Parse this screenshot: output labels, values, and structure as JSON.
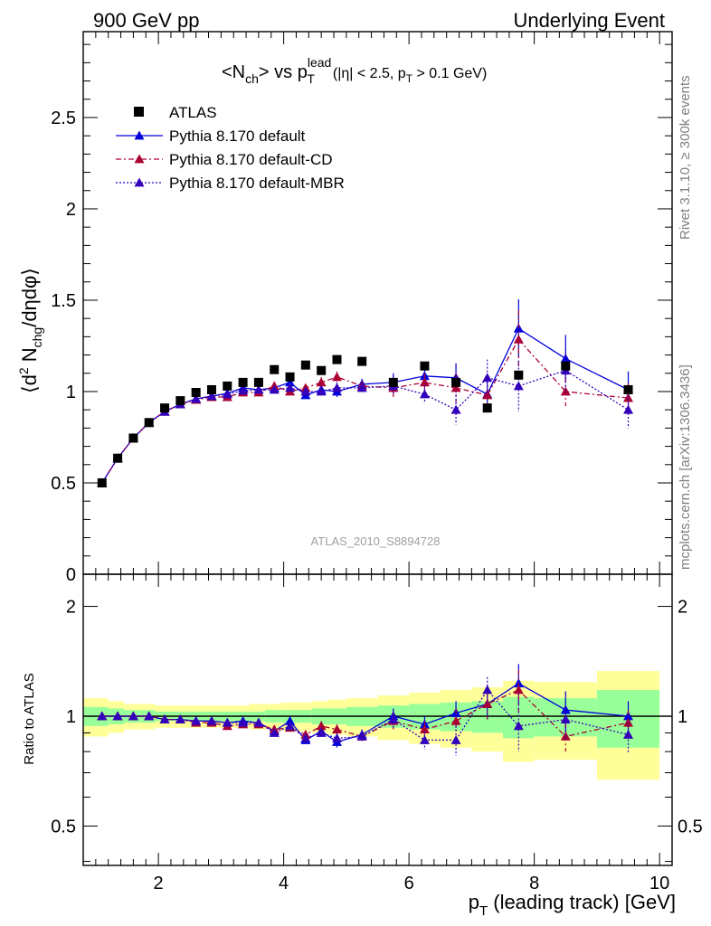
{
  "header": {
    "left": "900 GeV pp",
    "right": "Underlying Event"
  },
  "side_labels": {
    "rivet": "Rivet 3.1.10, ≥ 300k events",
    "mcplots": "mcplots.cern.ch [arXiv:1306.3436]"
  },
  "watermark": "ATLAS_2010_S8894728",
  "colors": {
    "atlas": "#000000",
    "default": "#0000dd",
    "cd": "#aa0033",
    "mbr": "#3300bb",
    "band_inner": "#99ff99",
    "band_outer": "#ffff99"
  },
  "chart_data": [
    {
      "type": "scatter",
      "panel": "main",
      "title": "<N_ch> vs p_T^lead (|η| < 2.5, p_T > 0.1 GeV)",
      "ylabel": "⟨d² N_chg/dηdφ⟩",
      "xlim": [
        0.8,
        10.2
      ],
      "ylim": [
        0,
        2.97
      ],
      "yticks": [
        0,
        0.5,
        1,
        1.5,
        2,
        2.5
      ],
      "ytick_labels": [
        "0",
        "0.5",
        "1",
        "1.5",
        "2",
        "2.5"
      ],
      "x": [
        1.1,
        1.35,
        1.6,
        1.85,
        2.1,
        2.35,
        2.6,
        2.85,
        3.1,
        3.35,
        3.6,
        3.85,
        4.1,
        4.35,
        4.6,
        4.85,
        5.25,
        5.75,
        6.25,
        6.75,
        7.25,
        7.75,
        8.5,
        9.5
      ],
      "legend": [
        "ATLAS",
        "Pythia 8.170 default",
        "Pythia 8.170 default-CD",
        "Pythia 8.170 default-MBR"
      ],
      "legend_position": "top-left",
      "series": [
        {
          "name": "ATLAS",
          "style": "square",
          "values": [
            0.5,
            0.635,
            0.745,
            0.83,
            0.91,
            0.95,
            0.995,
            1.01,
            1.03,
            1.05,
            1.05,
            1.12,
            1.08,
            1.145,
            1.115,
            1.175,
            1.165,
            1.05,
            1.14,
            1.05,
            0.91,
            1.09,
            1.14,
            1.01
          ]
        },
        {
          "name": "Pythia 8.170 default",
          "style": "solid",
          "values": [
            0.5,
            0.635,
            0.745,
            0.83,
            0.89,
            0.93,
            0.96,
            0.975,
            0.99,
            1.02,
            1.01,
            1.02,
            1.05,
            0.98,
            1.01,
            1.0,
            1.04,
            1.05,
            1.085,
            1.075,
            0.985,
            1.345,
            1.18,
            1.01
          ],
          "errors": [
            0,
            0,
            0,
            0,
            0,
            0,
            0,
            0,
            0.01,
            0.01,
            0.01,
            0.02,
            0.02,
            0.02,
            0.03,
            0.03,
            0.03,
            0.05,
            0.05,
            0.08,
            0.1,
            0.16,
            0.13,
            0.1
          ]
        },
        {
          "name": "Pythia 8.170 default-CD",
          "style": "dashdot",
          "values": [
            0.5,
            0.635,
            0.745,
            0.83,
            0.89,
            0.93,
            0.955,
            0.97,
            0.97,
            0.995,
            0.995,
            1.03,
            1.0,
            1.02,
            1.05,
            1.08,
            1.03,
            1.02,
            1.05,
            1.02,
            0.98,
            1.285,
            1.0,
            0.965
          ],
          "errors": [
            0,
            0,
            0,
            0,
            0,
            0,
            0,
            0,
            0.01,
            0.01,
            0.01,
            0.02,
            0.02,
            0.02,
            0.03,
            0.03,
            0.03,
            0.05,
            0.05,
            0.08,
            0.1,
            0.16,
            0.08,
            0.08
          ]
        },
        {
          "name": "Pythia 8.170 default-MBR",
          "style": "dotted",
          "values": [
            0.5,
            0.635,
            0.745,
            0.83,
            0.89,
            0.93,
            0.96,
            0.975,
            0.985,
            1.005,
            1.01,
            1.01,
            1.02,
            1.0,
            1.0,
            1.02,
            1.02,
            1.03,
            0.985,
            0.9,
            1.075,
            1.03,
            1.115,
            0.9
          ],
          "errors": [
            0,
            0,
            0,
            0,
            0,
            0,
            0,
            0,
            0.01,
            0.01,
            0.01,
            0.02,
            0.02,
            0.02,
            0.03,
            0.03,
            0.03,
            0.05,
            0.05,
            0.08,
            0.1,
            0.14,
            0.12,
            0.1
          ]
        }
      ]
    },
    {
      "type": "scatter",
      "panel": "ratio",
      "xlabel": "p_T (leading track) [GeV]",
      "ylabel": "Ratio to ATLAS",
      "xlim": [
        0.8,
        10.2
      ],
      "xticks": [
        2,
        4,
        6,
        8,
        10
      ],
      "xtick_labels": [
        "2",
        "4",
        "6",
        "8",
        "10"
      ],
      "ylim": [
        0.39,
        2.45
      ],
      "ylog": true,
      "yticks": [
        0.5,
        1,
        2
      ],
      "ytick_labels": [
        "0.5",
        "1",
        "2"
      ],
      "band_edges": [
        0.8,
        1.2,
        1.45,
        1.7,
        1.95,
        2.2,
        2.45,
        2.7,
        2.95,
        3.2,
        3.45,
        3.7,
        3.95,
        4.2,
        4.45,
        4.7,
        5.0,
        5.5,
        6.0,
        6.5,
        7.0,
        7.5,
        8.0,
        9.0,
        10.0
      ],
      "band_inner": [
        0.06,
        0.05,
        0.04,
        0.04,
        0.03,
        0.03,
        0.03,
        0.03,
        0.03,
        0.03,
        0.03,
        0.04,
        0.04,
        0.04,
        0.05,
        0.05,
        0.06,
        0.07,
        0.08,
        0.09,
        0.1,
        0.13,
        0.12,
        0.18
      ],
      "band_outer": [
        0.12,
        0.1,
        0.08,
        0.08,
        0.07,
        0.07,
        0.07,
        0.07,
        0.07,
        0.07,
        0.08,
        0.08,
        0.09,
        0.09,
        0.1,
        0.11,
        0.12,
        0.14,
        0.16,
        0.18,
        0.2,
        0.25,
        0.24,
        0.33
      ],
      "x": [
        1.1,
        1.35,
        1.6,
        1.85,
        2.1,
        2.35,
        2.6,
        2.85,
        3.1,
        3.35,
        3.6,
        3.85,
        4.1,
        4.35,
        4.6,
        4.85,
        5.25,
        5.75,
        6.25,
        6.75,
        7.25,
        7.75,
        8.5,
        9.5
      ],
      "series": [
        {
          "name": "Pythia 8.170 default",
          "values": [
            1.0,
            1.0,
            1.0,
            1.0,
            0.98,
            0.98,
            0.97,
            0.97,
            0.96,
            0.97,
            0.96,
            0.91,
            0.97,
            0.86,
            0.91,
            0.85,
            0.89,
            1.0,
            0.95,
            1.02,
            1.08,
            1.23,
            1.04,
            1.0
          ],
          "errors": [
            0,
            0,
            0,
            0,
            0,
            0,
            0,
            0,
            0.01,
            0.01,
            0.01,
            0.02,
            0.02,
            0.02,
            0.03,
            0.03,
            0.03,
            0.05,
            0.05,
            0.08,
            0.1,
            0.16,
            0.13,
            0.1
          ]
        },
        {
          "name": "Pythia 8.170 default-CD",
          "values": [
            1.0,
            1.0,
            1.0,
            1.0,
            0.98,
            0.98,
            0.96,
            0.96,
            0.94,
            0.95,
            0.95,
            0.92,
            0.93,
            0.89,
            0.94,
            0.92,
            0.88,
            0.97,
            0.92,
            0.97,
            1.08,
            1.18,
            0.88,
            0.96
          ],
          "errors": [
            0,
            0,
            0,
            0,
            0,
            0,
            0,
            0,
            0.01,
            0.01,
            0.01,
            0.02,
            0.02,
            0.02,
            0.03,
            0.03,
            0.03,
            0.05,
            0.05,
            0.08,
            0.1,
            0.16,
            0.08,
            0.08
          ]
        },
        {
          "name": "Pythia 8.170 default-MBR",
          "values": [
            1.0,
            1.0,
            1.0,
            1.0,
            0.98,
            0.98,
            0.97,
            0.97,
            0.96,
            0.96,
            0.96,
            0.9,
            0.94,
            0.87,
            0.9,
            0.87,
            0.88,
            0.98,
            0.86,
            0.86,
            1.18,
            0.94,
            0.98,
            0.89
          ],
          "errors": [
            0,
            0,
            0,
            0,
            0,
            0,
            0,
            0,
            0.01,
            0.01,
            0.01,
            0.02,
            0.02,
            0.02,
            0.03,
            0.03,
            0.03,
            0.05,
            0.05,
            0.08,
            0.1,
            0.14,
            0.12,
            0.1
          ]
        }
      ]
    }
  ]
}
